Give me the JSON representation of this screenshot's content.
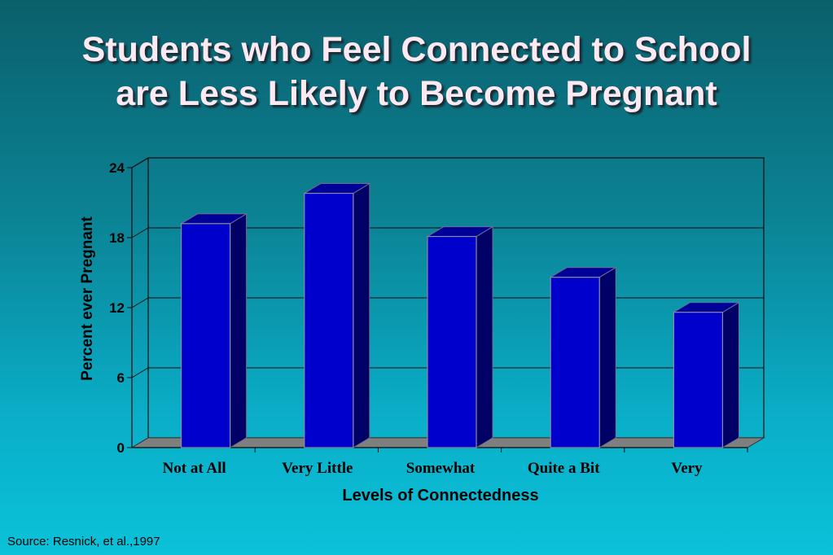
{
  "slide": {
    "title_line1": "Students who Feel Connected to School",
    "title_line2": "are Less Likely to Become Pregnant",
    "source": "Source: Resnick, et al.,1997"
  },
  "chart_data": {
    "type": "bar",
    "title": "",
    "xlabel": "Levels of Connectedness",
    "ylabel": "Percent ever Pregnant",
    "categories": [
      "Not at All",
      "Very Little",
      "Somewhat",
      "Quite a Bit",
      "Very"
    ],
    "values": [
      19.2,
      21.8,
      18.1,
      14.6,
      11.6
    ],
    "ylim": [
      0,
      24
    ],
    "yticks": [
      "0",
      "6",
      "12",
      "18",
      "24"
    ],
    "grid": true,
    "legend": "none",
    "bar_color": "#0000cc",
    "bar_side_color": "#000066",
    "bar_top_color": "#000099",
    "floor_color": "#7f7f7f"
  }
}
